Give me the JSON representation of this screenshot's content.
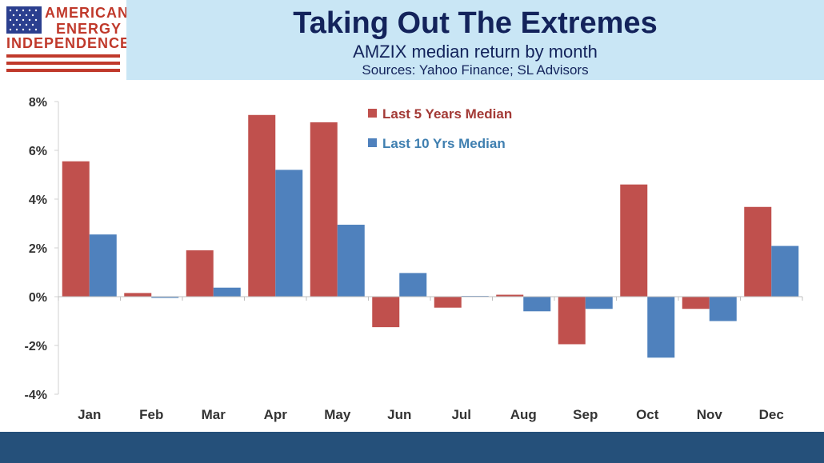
{
  "logo": {
    "line1": "AMERICAN",
    "line2": "ENERGY",
    "line3": "INDEPENDENCE"
  },
  "header": {
    "title": "Taking Out The Extremes",
    "subtitle": "AMZIX median return by month",
    "source": "Sources: Yahoo Finance; SL Advisors"
  },
  "colors": {
    "series1": "#c0504d",
    "series2": "#4f81bd",
    "header_bg": "#c9e6f5",
    "title": "#13235b",
    "footer": "#25507a"
  },
  "chart_data": {
    "type": "bar",
    "categories": [
      "Jan",
      "Feb",
      "Mar",
      "Apr",
      "May",
      "Jun",
      "Jul",
      "Aug",
      "Sep",
      "Oct",
      "Nov",
      "Dec"
    ],
    "series": [
      {
        "name": "Last 5 Years Median",
        "values": [
          5.55,
          0.15,
          1.9,
          7.45,
          7.15,
          -1.25,
          -0.45,
          0.08,
          -1.95,
          4.6,
          -0.5,
          3.68
        ]
      },
      {
        "name": "Last 10 Yrs Median",
        "values": [
          2.55,
          -0.05,
          0.37,
          5.2,
          2.95,
          0.97,
          0.03,
          -0.6,
          -0.5,
          -2.5,
          -1.0,
          2.08
        ]
      }
    ],
    "ylim": [
      -4,
      8
    ],
    "yticks": [
      -4,
      -2,
      0,
      2,
      4,
      6,
      8
    ],
    "ytick_labels": [
      "-4%",
      "-2%",
      "0%",
      "2%",
      "4%",
      "6%",
      "8%"
    ],
    "legend_position": "top-center",
    "grid": false
  }
}
